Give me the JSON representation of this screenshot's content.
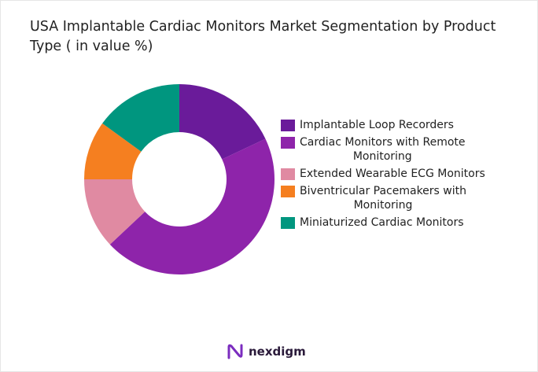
{
  "chart_data": {
    "type": "pie",
    "donut": true,
    "title": "USA Implantable Cardiac Monitors Market Segmentation by Product Type ( in value %)",
    "categories": [
      "Implantable Loop Recorders",
      "Cardiac Monitors with Remote Monitoring",
      "Extended Wearable ECG Monitors",
      "Biventricular Pacemakers with Monitoring",
      "Miniaturized Cardiac Monitors"
    ],
    "values": [
      18,
      45,
      12,
      10,
      15
    ],
    "colors": [
      "#6a1b9a",
      "#8e24aa",
      "#e08aa2",
      "#f57f20",
      "#00967f"
    ],
    "legend_placement": "right"
  },
  "legend": [
    {
      "line1": "Implantable Loop Recorders",
      "line2": ""
    },
    {
      "line1": "Cardiac Monitors with Remote",
      "line2": "Monitoring"
    },
    {
      "line1": "Extended Wearable ECG Monitors",
      "line2": ""
    },
    {
      "line1": "Biventricular Pacemakers with",
      "line2": "Monitoring"
    },
    {
      "line1": "Miniaturized Cardiac Monitors",
      "line2": ""
    }
  ],
  "logo": {
    "text": "nexdigm",
    "color": "#7b2cbf"
  }
}
